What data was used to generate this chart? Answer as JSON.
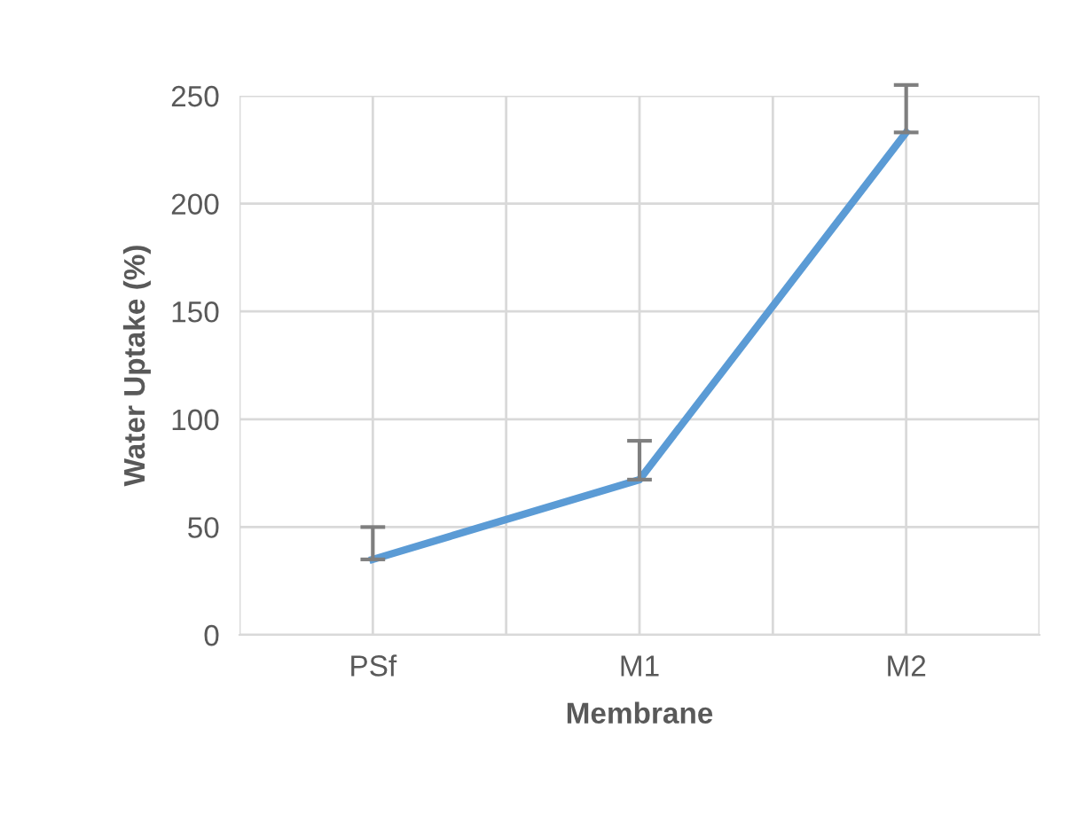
{
  "chart_data": {
    "type": "line",
    "xlabel": "Membrane",
    "ylabel": "Water Uptake (%)",
    "categories": [
      "PSf",
      "M1",
      "M2"
    ],
    "series": [
      {
        "color": "#5b9bd5",
        "values": [
          35,
          72,
          233
        ],
        "errors": [
          [
            35,
            50
          ],
          [
            72,
            90
          ],
          [
            233,
            255
          ]
        ]
      }
    ],
    "ylim": [
      0,
      250
    ],
    "yticks": [
      0,
      50,
      100,
      150,
      200,
      250
    ],
    "grid": true,
    "marker": "none",
    "line_style": "solid"
  }
}
